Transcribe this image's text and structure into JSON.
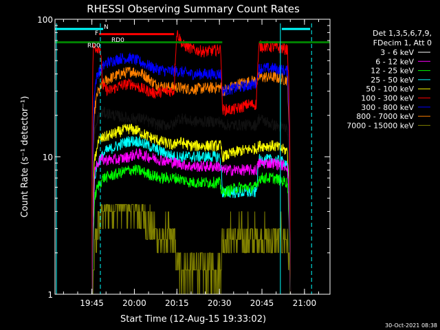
{
  "chart_data": {
    "type": "line",
    "title": "RHESSI Observing Summary Count Rates",
    "xlabel": "Start Time (12-Aug-15 19:33:02)",
    "ylabel": "Count Rate (s⁻¹ detector⁻¹)",
    "yscale": "log",
    "ylim": [
      1,
      100
    ],
    "xlim_minutes": [
      -13,
      84
    ],
    "x_ticks": [
      {
        "label": "19:45",
        "min": 0
      },
      {
        "label": "20:00",
        "min": 15
      },
      {
        "label": "20:15",
        "min": 30
      },
      {
        "label": "20:30",
        "min": 45
      },
      {
        "label": "20:45",
        "min": 60
      },
      {
        "label": "21:00",
        "min": 75
      }
    ],
    "y_ticks": [
      {
        "label": "1",
        "v": 1
      },
      {
        "label": "10",
        "v": 10
      },
      {
        "label": "100",
        "v": 100
      }
    ],
    "legend_header": [
      "Det 1,3,5,6,7,9,",
      "FDecim 1, Att 0"
    ],
    "series": [
      {
        "name": "3 - 6 keV",
        "color": "#000000",
        "points": [
          [
            0,
            0
          ],
          [
            1,
            16
          ],
          [
            1.6,
            16
          ],
          [
            2,
            19
          ],
          [
            4,
            21
          ],
          [
            8,
            20
          ],
          [
            13,
            19
          ],
          [
            18,
            19
          ],
          [
            20,
            18
          ],
          [
            24,
            17
          ],
          [
            29,
            17
          ],
          [
            30,
            19
          ],
          [
            32,
            19
          ],
          [
            35,
            18
          ],
          [
            45,
            18
          ],
          [
            45.5,
            18
          ],
          [
            46,
            17
          ],
          [
            52,
            17
          ],
          [
            58,
            17
          ],
          [
            59,
            19
          ],
          [
            64,
            17
          ],
          [
            69,
            16
          ],
          [
            70,
            1
          ],
          [
            70.5,
            0
          ]
        ]
      },
      {
        "name": "6 - 12 keV",
        "color": "#ff00ff",
        "points": [
          [
            0,
            0
          ],
          [
            1,
            8
          ],
          [
            2,
            9
          ],
          [
            3,
            9.5
          ],
          [
            9,
            9.5
          ],
          [
            13,
            10
          ],
          [
            16,
            10.5
          ],
          [
            20,
            10
          ],
          [
            24,
            9.5
          ],
          [
            30,
            9
          ],
          [
            35,
            8.5
          ],
          [
            45,
            8.5
          ],
          [
            46,
            8
          ],
          [
            52,
            8
          ],
          [
            58,
            8
          ],
          [
            59,
            9
          ],
          [
            64,
            9
          ],
          [
            69,
            8.5
          ],
          [
            70,
            1
          ],
          [
            70.5,
            0
          ]
        ]
      },
      {
        "name": "12 - 25 keV",
        "color": "#00ff00",
        "points": [
          [
            0,
            0
          ],
          [
            1,
            5
          ],
          [
            2,
            6
          ],
          [
            4,
            7
          ],
          [
            9,
            7.5
          ],
          [
            13,
            8
          ],
          [
            16,
            8
          ],
          [
            20,
            7.5
          ],
          [
            24,
            7
          ],
          [
            30,
            7
          ],
          [
            35,
            6.5
          ],
          [
            45,
            6.5
          ],
          [
            46,
            5.5
          ],
          [
            52,
            6
          ],
          [
            58,
            6
          ],
          [
            59,
            7
          ],
          [
            64,
            7
          ],
          [
            69,
            6.5
          ],
          [
            70,
            1
          ],
          [
            70.5,
            0
          ]
        ]
      },
      {
        "name": "25 - 50 keV",
        "color": "#00ffff",
        "points": [
          [
            0,
            0
          ],
          [
            1,
            7
          ],
          [
            2,
            9
          ],
          [
            5,
            11
          ],
          [
            9,
            12
          ],
          [
            13,
            13
          ],
          [
            16,
            13
          ],
          [
            20,
            12
          ],
          [
            24,
            11
          ],
          [
            29,
            10
          ],
          [
            35,
            10
          ],
          [
            45,
            10
          ],
          [
            45.5,
            9
          ],
          [
            46,
            5.5
          ],
          [
            52,
            5.5
          ],
          [
            58,
            5.5
          ],
          [
            59,
            9.5
          ],
          [
            64,
            9.5
          ],
          [
            69,
            9
          ],
          [
            70,
            1
          ],
          [
            70.5,
            0
          ]
        ]
      },
      {
        "name": "50 - 100 keV",
        "color": "#ffff00",
        "points": [
          [
            0,
            0
          ],
          [
            1,
            10
          ],
          [
            1.6,
            10
          ],
          [
            2,
            13
          ],
          [
            5,
            14
          ],
          [
            9,
            15
          ],
          [
            13,
            16
          ],
          [
            16,
            15.5
          ],
          [
            20,
            14
          ],
          [
            24,
            13
          ],
          [
            29,
            12
          ],
          [
            30,
            13
          ],
          [
            35,
            12
          ],
          [
            45,
            12
          ],
          [
            45.5,
            12
          ],
          [
            46,
            10
          ],
          [
            52,
            11
          ],
          [
            58,
            11.5
          ],
          [
            59,
            12
          ],
          [
            64,
            12
          ],
          [
            69,
            11
          ],
          [
            70,
            1
          ],
          [
            70.5,
            0
          ]
        ]
      },
      {
        "name": "100 - 300 keV",
        "color": "#ff0000",
        "points": [
          [
            0,
            0
          ],
          [
            0.5,
            62
          ],
          [
            3,
            62
          ],
          [
            3.5,
            40
          ],
          [
            4,
            32
          ],
          [
            6,
            30
          ],
          [
            10,
            33
          ],
          [
            14,
            34
          ],
          [
            18,
            31
          ],
          [
            22,
            29
          ],
          [
            26,
            30
          ],
          [
            29,
            30
          ],
          [
            30,
            80
          ],
          [
            32,
            65
          ],
          [
            36,
            60
          ],
          [
            40,
            58
          ],
          [
            45,
            60
          ],
          [
            45.5,
            60
          ],
          [
            46,
            22
          ],
          [
            50,
            22
          ],
          [
            53,
            23
          ],
          [
            55,
            24
          ],
          [
            58,
            24
          ],
          [
            59,
            64
          ],
          [
            63,
            63
          ],
          [
            66,
            62
          ],
          [
            69,
            60
          ],
          [
            70,
            1
          ],
          [
            70.5,
            0
          ]
        ]
      },
      {
        "name": "300 - 800 keV",
        "color": "#0000ff",
        "points": [
          [
            0,
            0
          ],
          [
            1,
            32
          ],
          [
            2,
            40
          ],
          [
            5,
            48
          ],
          [
            10,
            52
          ],
          [
            14,
            52
          ],
          [
            18,
            48
          ],
          [
            22,
            44
          ],
          [
            26,
            42
          ],
          [
            30,
            42
          ],
          [
            35,
            40
          ],
          [
            45,
            40
          ],
          [
            45.5,
            40
          ],
          [
            46,
            30
          ],
          [
            52,
            32
          ],
          [
            58,
            34
          ],
          [
            59,
            44
          ],
          [
            64,
            44
          ],
          [
            69,
            42
          ],
          [
            70,
            1
          ],
          [
            70.5,
            0
          ]
        ]
      },
      {
        "name": "800 - 7000 keV",
        "color": "#ff8000",
        "points": [
          [
            0,
            0
          ],
          [
            1,
            22
          ],
          [
            2,
            29
          ],
          [
            5,
            36
          ],
          [
            10,
            40
          ],
          [
            14,
            42
          ],
          [
            18,
            40
          ],
          [
            22,
            34
          ],
          [
            26,
            32
          ],
          [
            30,
            32
          ],
          [
            35,
            31
          ],
          [
            45,
            32
          ],
          [
            45.5,
            32
          ],
          [
            46,
            30
          ],
          [
            52,
            34
          ],
          [
            58,
            36
          ],
          [
            59,
            38
          ],
          [
            64,
            38
          ],
          [
            69,
            36
          ],
          [
            70,
            1
          ],
          [
            70.5,
            0
          ]
        ]
      },
      {
        "name": "7000 - 15000 keV",
        "color": "#808000",
        "points": [
          [
            0,
            0
          ],
          [
            1,
            2
          ],
          [
            2,
            3
          ],
          [
            4,
            4
          ],
          [
            9,
            4.5
          ],
          [
            13,
            4.5
          ],
          [
            16,
            4
          ],
          [
            19,
            3.5
          ],
          [
            21,
            3
          ],
          [
            24,
            2.5
          ],
          [
            29,
            2.5
          ],
          [
            30,
            1.5
          ],
          [
            35,
            1.5
          ],
          [
            45,
            1.5
          ],
          [
            45.5,
            1.5
          ],
          [
            46,
            2.5
          ],
          [
            52,
            2.5
          ],
          [
            58,
            2.5
          ],
          [
            59,
            2.5
          ],
          [
            64,
            2.5
          ],
          [
            69,
            2.5
          ],
          [
            70,
            1
          ],
          [
            70.5,
            0
          ]
        ]
      }
    ],
    "status_bars": [
      {
        "label": "",
        "color": "#00ffff",
        "y": 85,
        "segments": [
          [
            -13,
            4
          ],
          [
            67,
            77
          ]
        ]
      },
      {
        "label": "F",
        "color": "#ff0000",
        "y": 78,
        "segments": [
          [
            2.5,
            29
          ]
        ]
      },
      {
        "label": "RD0",
        "color": "#008000",
        "y": 68,
        "segments": [
          [
            -13,
            46
          ],
          [
            59,
            84
          ]
        ]
      },
      {
        "label": "RD0",
        "color": "#008000",
        "y": 68,
        "segments": []
      }
    ],
    "markers": [
      {
        "label": "N",
        "color": "#00ffff",
        "x": 3,
        "style": "dashed"
      },
      {
        "label": "",
        "color": "#00ffff",
        "x": 77.5,
        "style": "dashed"
      }
    ],
    "vlines": [
      {
        "color": "#00ffff",
        "x": -12.5
      },
      {
        "color": "#00ffff",
        "x": 66.5
      }
    ],
    "timestamp": "30-Oct-2021 08:38"
  }
}
